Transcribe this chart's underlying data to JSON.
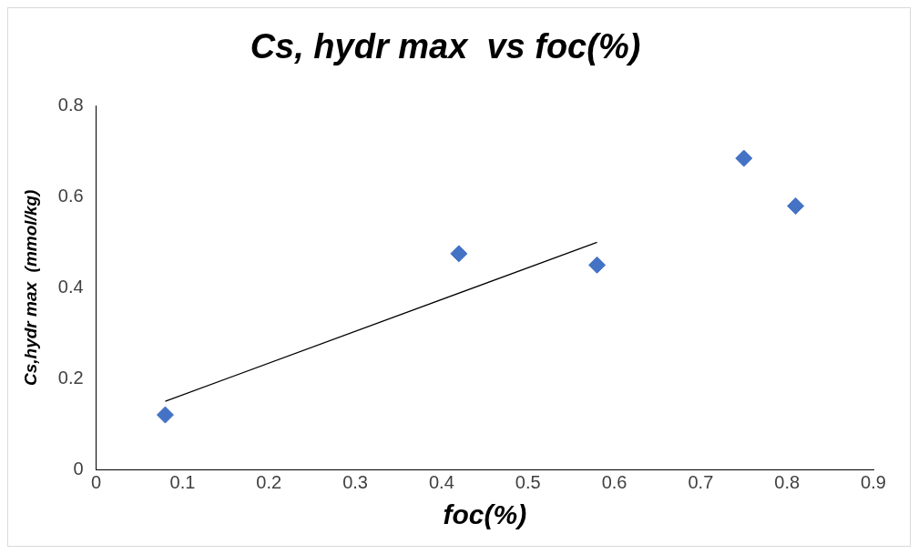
{
  "chart_data": {
    "type": "scatter",
    "title": "Cs, hydr max  vs foc(%)",
    "xlabel": "foc(%)",
    "ylabel": "Cs,hydr max  (mmol/kg)",
    "xlim": [
      0,
      0.9
    ],
    "xticks": [
      0,
      0.1,
      0.2,
      0.3,
      0.4,
      0.5,
      0.6,
      0.7,
      0.8,
      0.9
    ],
    "ylim": [
      0,
      0.8
    ],
    "yticks": [
      0,
      0.2,
      0.4,
      0.6,
      0.8
    ],
    "grid": false,
    "legend": false,
    "marker": "diamond",
    "series": [
      {
        "type": "scatter",
        "color": "#4472c4",
        "x": [
          0.08,
          0.42,
          0.58,
          0.75,
          0.81
        ],
        "values": [
          0.12,
          0.475,
          0.45,
          0.685,
          0.58
        ]
      },
      {
        "type": "line",
        "color": "#000000",
        "x": [
          0.08,
          0.58
        ],
        "values": [
          0.15,
          0.5
        ],
        "marker": "none"
      }
    ]
  }
}
